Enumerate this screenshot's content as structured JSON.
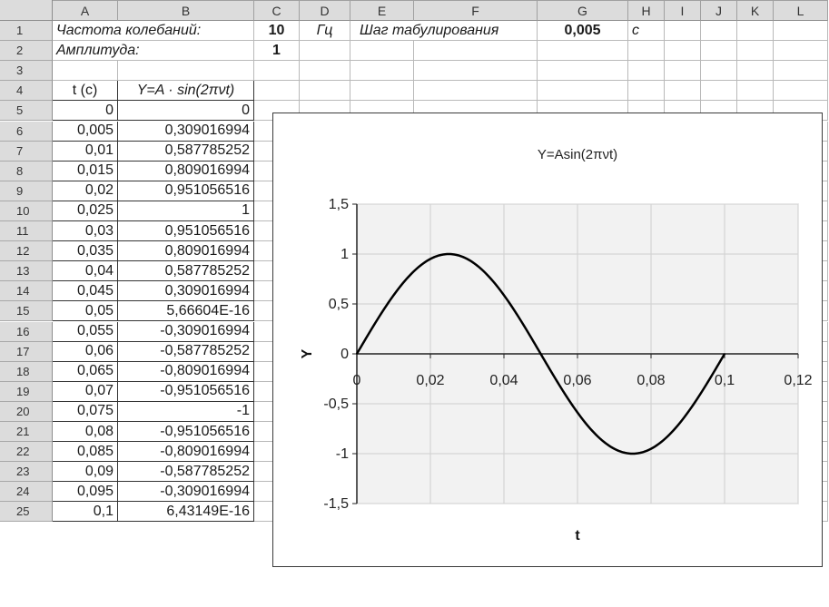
{
  "columns": [
    "A",
    "B",
    "C",
    "D",
    "E",
    "F",
    "G",
    "H",
    "I",
    "J",
    "K",
    "L"
  ],
  "rows": [
    "1",
    "2",
    "3",
    "4",
    "5",
    "6",
    "7",
    "8",
    "9",
    "10",
    "11",
    "12",
    "13",
    "14",
    "15",
    "16",
    "17",
    "18",
    "19",
    "20",
    "21",
    "22",
    "23",
    "24",
    "25"
  ],
  "row1": {
    "freq_label": "Частота колебаний:",
    "freq_value": "10",
    "freq_unit": "Гц",
    "step_label": "Шаг табулирования",
    "step_value": "0,005",
    "step_unit": "с"
  },
  "row2": {
    "amp_label": "Амплитуда:",
    "amp_value": "1"
  },
  "table": {
    "header_t": "t (c)",
    "header_y": "Y=A · sin(2πνt)",
    "t_values": [
      "0",
      "0,005",
      "0,01",
      "0,015",
      "0,02",
      "0,025",
      "0,03",
      "0,035",
      "0,04",
      "0,045",
      "0,05",
      "0,055",
      "0,06",
      "0,065",
      "0,07",
      "0,075",
      "0,08",
      "0,085",
      "0,09",
      "0,095",
      "0,1"
    ],
    "y_values": [
      "0",
      "0,309016994",
      "0,587785252",
      "0,809016994",
      "0,951056516",
      "1",
      "0,951056516",
      "0,809016994",
      "0,587785252",
      "0,309016994",
      "5,66604E-16",
      "-0,309016994",
      "-0,587785252",
      "-0,809016994",
      "-0,951056516",
      "-1",
      "-0,951056516",
      "-0,809016994",
      "-0,587785252",
      "-0,309016994",
      "6,43149E-16"
    ]
  },
  "colors": {
    "header_bg": "#dcdcdc",
    "plot_bg": "#f2f2f2",
    "grid": "#cfcfcf",
    "line": "#000000"
  },
  "chart_data": {
    "type": "line",
    "title": "Y=Asin(2πνt)",
    "xlabel": "t",
    "ylabel": "Y",
    "xlim": [
      0,
      0.12
    ],
    "ylim": [
      -1.5,
      1.5
    ],
    "x_ticks": [
      "0",
      "0,02",
      "0,04",
      "0,06",
      "0,08",
      "0,1",
      "0,12"
    ],
    "y_ticks": [
      "1,5",
      "1",
      "0,5",
      "0",
      "-0,5",
      "-1",
      "-1,5"
    ],
    "x_tick_values": [
      0,
      0.02,
      0.04,
      0.06,
      0.08,
      0.1,
      0.12
    ],
    "y_tick_values": [
      1.5,
      1,
      0.5,
      0,
      -0.5,
      -1,
      -1.5
    ],
    "grid": true,
    "legend": "none",
    "series": [
      {
        "x": [
          0,
          0.005,
          0.01,
          0.015,
          0.02,
          0.025,
          0.03,
          0.035,
          0.04,
          0.045,
          0.05,
          0.055,
          0.06,
          0.065,
          0.07,
          0.075,
          0.08,
          0.085,
          0.09,
          0.095,
          0.1
        ],
        "values": [
          0,
          0.309016994,
          0.587785252,
          0.809016994,
          0.951056516,
          1,
          0.951056516,
          0.809016994,
          0.587785252,
          0.309016994,
          0,
          -0.309016994,
          -0.587785252,
          -0.809016994,
          -0.951056516,
          -1,
          -0.951056516,
          -0.809016994,
          -0.587785252,
          -0.309016994,
          0
        ]
      }
    ]
  }
}
